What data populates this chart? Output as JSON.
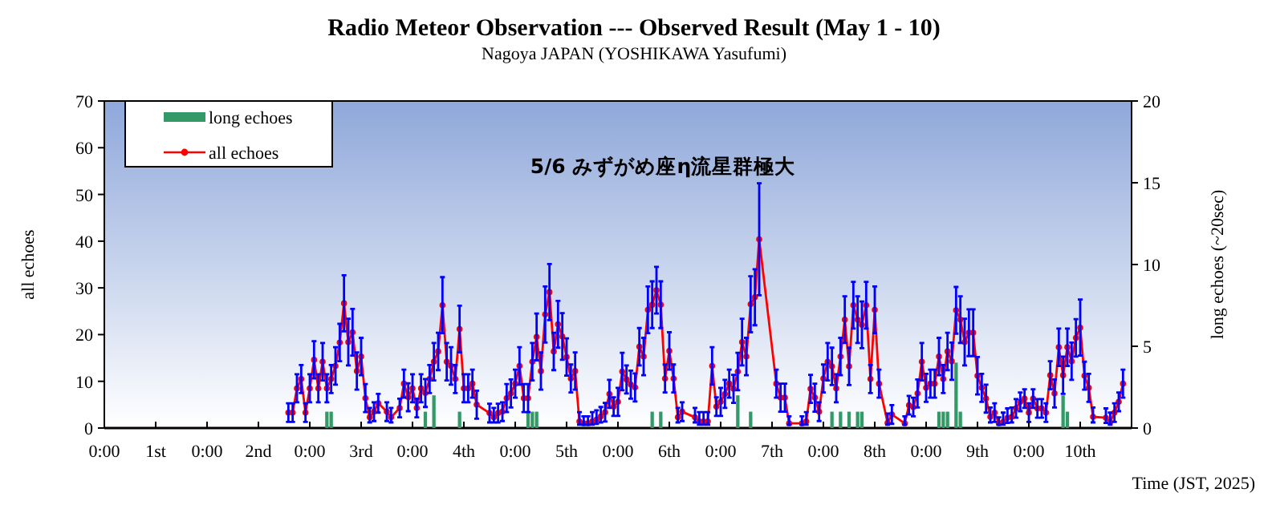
{
  "chart_data": {
    "type": "line",
    "title": "Radio Meteor Observation  --- Observed Result (May 1 - 10)",
    "subtitle": "Nagoya JAPAN (YOSHIKAWA Yasufumi)",
    "xlabel": "Time (JST, 2025)",
    "ylabel": "all echoes",
    "y2label": "long echoes (~20sec)",
    "annotations": [
      "5/6 みずがめ座η流星群極大"
    ],
    "xlim": [
      "2025-05-01T00:00",
      "2025-05-11T00:00"
    ],
    "xticks": [
      {
        "value": "2025-05-01T00:00",
        "label": "0:00"
      },
      {
        "value": "2025-05-01T12:00",
        "label": "1st"
      },
      {
        "value": "2025-05-02T00:00",
        "label": "0:00"
      },
      {
        "value": "2025-05-02T12:00",
        "label": "2nd"
      },
      {
        "value": "2025-05-03T00:00",
        "label": "0:00"
      },
      {
        "value": "2025-05-03T12:00",
        "label": "3rd"
      },
      {
        "value": "2025-05-04T00:00",
        "label": "0:00"
      },
      {
        "value": "2025-05-04T12:00",
        "label": "4th"
      },
      {
        "value": "2025-05-05T00:00",
        "label": "0:00"
      },
      {
        "value": "2025-05-05T12:00",
        "label": "5th"
      },
      {
        "value": "2025-05-06T00:00",
        "label": "0:00"
      },
      {
        "value": "2025-05-06T12:00",
        "label": "6th"
      },
      {
        "value": "2025-05-07T00:00",
        "label": "0:00"
      },
      {
        "value": "2025-05-07T12:00",
        "label": "7th"
      },
      {
        "value": "2025-05-08T00:00",
        "label": "0:00"
      },
      {
        "value": "2025-05-08T12:00",
        "label": "8th"
      },
      {
        "value": "2025-05-09T00:00",
        "label": "0:00"
      },
      {
        "value": "2025-05-09T12:00",
        "label": "9th"
      },
      {
        "value": "2025-05-10T00:00",
        "label": "0:00"
      },
      {
        "value": "2025-05-10T12:00",
        "label": "10th"
      },
      {
        "value": "2025-05-11T00:00",
        "label": null
      }
    ],
    "ylim": [
      0,
      70
    ],
    "yticks": [
      0,
      10,
      20,
      30,
      40,
      50,
      60,
      70
    ],
    "y2lim": [
      0,
      20
    ],
    "y2ticks": [
      0,
      5,
      10,
      15,
      20
    ],
    "legend": "top left",
    "marker": "circle",
    "grid": false,
    "series": [
      {
        "name": "long echoes",
        "type": "bar",
        "axis": "y2",
        "color": "#339966",
        "x": [
          "2025-05-03T04:00",
          "2025-05-03T05:00",
          "2025-05-04T03:00",
          "2025-05-04T05:00",
          "2025-05-04T11:00",
          "2025-05-05T03:00",
          "2025-05-05T04:00",
          "2025-05-05T05:00",
          "2025-05-06T08:00",
          "2025-05-06T10:00",
          "2025-05-07T04:00",
          "2025-05-07T07:00",
          "2025-05-08T02:00",
          "2025-05-08T04:00",
          "2025-05-08T06:00",
          "2025-05-08T08:00",
          "2025-05-08T09:00",
          "2025-05-09T03:00",
          "2025-05-09T04:00",
          "2025-05-09T05:00",
          "2025-05-09T07:00",
          "2025-05-09T08:00",
          "2025-05-10T08:00",
          "2025-05-10T09:00"
        ],
        "values": [
          1,
          1,
          1,
          2,
          1,
          1,
          1,
          1,
          1,
          1,
          2,
          1,
          1,
          1,
          1,
          1,
          1,
          1,
          1,
          1,
          4,
          1,
          2,
          1
        ]
      },
      {
        "name": "all echoes",
        "color": "#ff0000",
        "x": [
          "2025-05-02T19:00",
          "2025-05-02T20:00",
          "2025-05-02T21:00",
          "2025-05-02T22:00",
          "2025-05-02T23:00",
          "2025-05-03T00:00",
          "2025-05-03T01:00",
          "2025-05-03T02:00",
          "2025-05-03T03:00",
          "2025-05-03T04:00",
          "2025-05-03T05:00",
          "2025-05-03T06:00",
          "2025-05-03T07:00",
          "2025-05-03T08:00",
          "2025-05-03T09:00",
          "2025-05-03T10:00",
          "2025-05-03T11:00",
          "2025-05-03T12:00",
          "2025-05-03T13:00",
          "2025-05-03T14:00",
          "2025-05-03T15:00",
          "2025-05-03T16:00",
          "2025-05-03T18:00",
          "2025-05-03T19:00",
          "2025-05-03T21:00",
          "2025-05-03T22:00",
          "2025-05-03T23:00",
          "2025-05-04T00:00",
          "2025-05-04T01:00",
          "2025-05-04T02:00",
          "2025-05-04T03:00",
          "2025-05-04T04:00",
          "2025-05-04T05:00",
          "2025-05-04T06:00",
          "2025-05-04T07:00",
          "2025-05-04T08:00",
          "2025-05-04T09:00",
          "2025-05-04T10:00",
          "2025-05-04T11:00",
          "2025-05-04T12:00",
          "2025-05-04T13:00",
          "2025-05-04T14:00",
          "2025-05-04T15:00",
          "2025-05-04T18:00",
          "2025-05-04T19:00",
          "2025-05-04T20:00",
          "2025-05-04T21:00",
          "2025-05-04T22:00",
          "2025-05-04T23:00",
          "2025-05-05T00:00",
          "2025-05-05T01:00",
          "2025-05-05T02:00",
          "2025-05-05T03:00",
          "2025-05-05T04:00",
          "2025-05-05T05:00",
          "2025-05-05T06:00",
          "2025-05-05T07:00",
          "2025-05-05T08:00",
          "2025-05-05T09:00",
          "2025-05-05T10:00",
          "2025-05-05T11:00",
          "2025-05-05T12:00",
          "2025-05-05T13:00",
          "2025-05-05T14:00",
          "2025-05-05T15:00",
          "2025-05-05T16:00",
          "2025-05-05T17:00",
          "2025-05-05T18:00",
          "2025-05-05T19:00",
          "2025-05-05T20:00",
          "2025-05-05T21:00",
          "2025-05-05T22:00",
          "2025-05-05T23:00",
          "2025-05-06T00:00",
          "2025-05-06T01:00",
          "2025-05-06T02:00",
          "2025-05-06T03:00",
          "2025-05-06T04:00",
          "2025-05-06T05:00",
          "2025-05-06T06:00",
          "2025-05-06T07:00",
          "2025-05-06T08:00",
          "2025-05-06T09:00",
          "2025-05-06T10:00",
          "2025-05-06T11:00",
          "2025-05-06T12:00",
          "2025-05-06T13:00",
          "2025-05-06T14:00",
          "2025-05-06T15:00",
          "2025-05-06T18:00",
          "2025-05-06T19:00",
          "2025-05-06T20:00",
          "2025-05-06T21:00",
          "2025-05-06T22:00",
          "2025-05-06T23:00",
          "2025-05-07T00:00",
          "2025-05-07T01:00",
          "2025-05-07T02:00",
          "2025-05-07T03:00",
          "2025-05-07T04:00",
          "2025-05-07T05:00",
          "2025-05-07T06:00",
          "2025-05-07T07:00",
          "2025-05-07T08:00",
          "2025-05-07T09:00",
          "2025-05-07T13:00",
          "2025-05-07T14:00",
          "2025-05-07T15:00",
          "2025-05-07T16:00",
          "2025-05-07T19:00",
          "2025-05-07T20:00",
          "2025-05-07T21:00",
          "2025-05-07T22:00",
          "2025-05-07T23:00",
          "2025-05-08T00:00",
          "2025-05-08T01:00",
          "2025-05-08T02:00",
          "2025-05-08T03:00",
          "2025-05-08T04:00",
          "2025-05-08T05:00",
          "2025-05-08T06:00",
          "2025-05-08T07:00",
          "2025-05-08T08:00",
          "2025-05-08T09:00",
          "2025-05-08T10:00",
          "2025-05-08T11:00",
          "2025-05-08T12:00",
          "2025-05-08T13:00",
          "2025-05-08T15:00",
          "2025-05-08T16:00",
          "2025-05-08T19:00",
          "2025-05-08T20:00",
          "2025-05-08T21:00",
          "2025-05-08T22:00",
          "2025-05-08T23:00",
          "2025-05-09T00:00",
          "2025-05-09T01:00",
          "2025-05-09T02:00",
          "2025-05-09T03:00",
          "2025-05-09T04:00",
          "2025-05-09T05:00",
          "2025-05-09T06:00",
          "2025-05-09T07:00",
          "2025-05-09T08:00",
          "2025-05-09T09:00",
          "2025-05-09T10:00",
          "2025-05-09T11:00",
          "2025-05-09T12:00",
          "2025-05-09T13:00",
          "2025-05-09T14:00",
          "2025-05-09T15:00",
          "2025-05-09T16:00",
          "2025-05-09T17:00",
          "2025-05-09T18:00",
          "2025-05-09T19:00",
          "2025-05-09T20:00",
          "2025-05-09T21:00",
          "2025-05-09T22:00",
          "2025-05-09T23:00",
          "2025-05-10T00:00",
          "2025-05-10T01:00",
          "2025-05-10T02:00",
          "2025-05-10T03:00",
          "2025-05-10T04:00",
          "2025-05-10T05:00",
          "2025-05-10T06:00",
          "2025-05-10T07:00",
          "2025-05-10T08:00",
          "2025-05-10T09:00",
          "2025-05-10T10:00",
          "2025-05-10T11:00",
          "2025-05-10T12:00",
          "2025-05-10T13:00",
          "2025-05-10T14:00",
          "2025-05-10T15:00",
          "2025-05-10T18:00",
          "2025-05-10T19:00",
          "2025-05-10T20:00",
          "2025-05-10T21:00",
          "2025-05-10T22:00"
        ],
        "values": [
          3.3,
          3.3,
          8.5,
          10.5,
          3.3,
          8.5,
          14.6,
          8.5,
          14.2,
          8.5,
          10.5,
          13.3,
          18.3,
          26.7,
          18.4,
          20.5,
          12.2,
          15.3,
          6.4,
          2.3,
          3.5,
          5.3,
          3.5,
          2.3,
          4.3,
          9.5,
          6.6,
          8.5,
          4.3,
          8.5,
          7.5,
          10.5,
          14.2,
          16.4,
          26.3,
          14.2,
          13.3,
          10.5,
          21.2,
          8.5,
          8.5,
          9.5,
          5,
          3.2,
          2.3,
          3.2,
          3.5,
          6.4,
          7.4,
          9.5,
          13.3,
          6.4,
          6.4,
          14.2,
          19.5,
          12.2,
          24.3,
          29.1,
          16.4,
          22.2,
          19.6,
          15.2,
          10.6,
          12.2,
          1.4,
          1,
          1,
          1.4,
          1.8,
          2.5,
          3.4,
          7.3,
          4.6,
          5.6,
          12.1,
          10.4,
          9.3,
          8.7,
          17.4,
          15.3,
          25.3,
          26.4,
          29.5,
          26.4,
          10.6,
          16.5,
          10.6,
          2.3,
          3.5,
          2.3,
          1.4,
          1.4,
          1.4,
          13.3,
          4.6,
          5.6,
          7.3,
          9.5,
          8.4,
          12.1,
          18.4,
          15.3,
          26.5,
          28,
          40.4,
          9.5,
          6.5,
          6.5,
          1,
          1,
          1.4,
          8.4,
          6.5,
          3.5,
          10.6,
          14.2,
          13.2,
          8.5,
          15.3,
          23.2,
          13.2,
          26.3,
          23.2,
          22.1,
          26.3,
          10.5,
          25.3,
          9.5,
          1.1,
          2.9,
          1,
          4.9,
          4.5,
          7.4,
          14.2,
          8.6,
          9.5,
          9.5,
          15.3,
          10.5,
          16.4,
          14.3,
          25.2,
          23.2,
          18.4,
          20.4,
          20.4,
          11.2,
          8.6,
          6.3,
          2.4,
          3.3,
          1,
          1.3,
          2.2,
          2.4,
          4.2,
          5.6,
          6.3,
          3.3,
          6.3,
          4.2,
          4.2,
          3.3,
          11.3,
          7.4,
          17.3,
          11.3,
          17.3,
          14.3,
          19.3,
          21.5,
          11.2,
          8.6,
          2.4,
          2.2,
          1.3,
          3.3,
          5.6,
          9.5
        ],
        "errors": [
          2,
          2,
          3,
          3,
          2,
          3,
          4,
          3,
          4,
          3,
          3,
          4,
          4,
          6,
          5,
          5,
          4,
          4,
          3,
          [
            1.2,
            4.3
          ],
          2,
          2,
          2,
          [
            1.2,
            4.3
          ],
          2,
          3,
          3,
          3,
          2,
          3,
          3,
          3,
          4,
          4,
          6,
          4,
          4,
          3,
          5,
          3,
          3,
          3,
          3,
          2,
          [
            1.2,
            4.3
          ],
          2,
          2,
          3,
          3,
          3,
          4,
          3,
          3,
          4,
          5,
          4,
          6,
          6,
          4,
          5,
          5,
          4,
          3,
          4,
          [
            0.7,
            3.4
          ],
          [
            0.7,
            2.5
          ],
          [
            0.7,
            2.5
          ],
          [
            0.7,
            3.4
          ],
          [
            0.9,
            3.8
          ],
          [
            1.2,
            4.5
          ],
          2,
          3,
          2,
          3,
          4,
          3,
          3,
          3,
          4,
          4,
          5,
          5,
          5,
          5,
          3,
          4,
          3,
          [
            1.2,
            4.3
          ],
          2,
          [
            1.2,
            4.3
          ],
          [
            0.7,
            3.4
          ],
          [
            0.7,
            3.4
          ],
          [
            0.7,
            3.4
          ],
          4,
          2,
          3,
          3,
          3,
          3,
          4,
          5,
          4,
          6,
          6,
          12,
          3,
          3,
          3,
          [
            0.7,
            2.5
          ],
          [
            0.7,
            2.5
          ],
          [
            0.7,
            3.4
          ],
          3,
          3,
          2,
          3,
          4,
          4,
          3,
          4,
          5,
          4,
          5,
          5,
          5,
          5,
          3,
          5,
          3,
          [
            0.7,
            3.1
          ],
          2,
          [
            0.7,
            2.5
          ],
          2,
          2,
          3,
          4,
          3,
          3,
          3,
          4,
          3,
          4,
          4,
          5,
          5,
          5,
          5,
          5,
          4,
          3,
          3,
          [
            1.2,
            4.4
          ],
          2,
          [
            0.7,
            2.3
          ],
          [
            0.7,
            3.3
          ],
          [
            1.1,
            4.2
          ],
          [
            1.2,
            4.4
          ],
          2,
          2,
          2,
          2,
          2,
          2,
          2,
          2,
          3,
          3,
          4,
          4,
          4,
          4,
          4,
          6,
          3,
          3,
          [
            1.2,
            4.4
          ],
          [
            1.1,
            4.2
          ],
          [
            0.7,
            3.3
          ],
          2,
          2,
          3
        ]
      }
    ]
  }
}
